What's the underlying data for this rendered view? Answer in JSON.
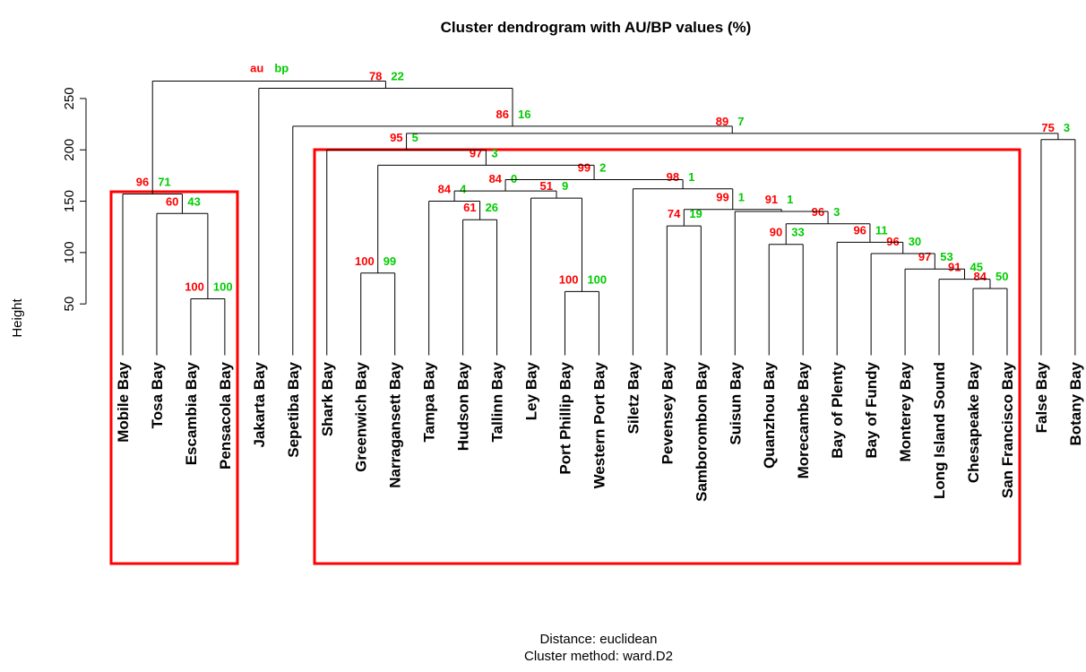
{
  "chart_data": {
    "type": "dendrogram",
    "title": "Cluster dendrogram with AU/BP values (%)",
    "y_label": "Height",
    "x_label": [
      "Distance:  euclidean",
      "Cluster method: ward.D2"
    ],
    "legend": [
      "au",
      "bp"
    ],
    "au_color": "#ff0000",
    "bp_color": "#00cc00",
    "line_color": "#000000",
    "rect_color": "#ff0000",
    "ylim": [
      0,
      270
    ],
    "yticks": [
      50,
      100,
      150,
      200,
      250
    ],
    "leaves": [
      "Mobile Bay",
      "Tosa Bay",
      "Escambia Bay",
      "Pensacola Bay",
      "Jakarta Bay",
      "Sepetiba Bay",
      "Shark Bay",
      "Greenwich Bay",
      "Narragansett Bay",
      "Tampa Bay",
      "Hudson Bay",
      "Tallinn Bay",
      "Ley Bay",
      "Port Phillip Bay",
      "Western Port Bay",
      "Siletz Bay",
      "Pevensey Bay",
      "Samborombon Bay",
      "Suisun Bay",
      "Quanzhou Bay",
      "Morecambe Bay",
      "Bay of Plenty",
      "Bay of Fundy",
      "Monterey Bay",
      "Long Island Sound",
      "Chesapeake Bay",
      "San Francisco Bay",
      "False Bay",
      "Botany Bay"
    ],
    "merges": [
      {
        "pair": [
          -3,
          -4
        ],
        "height": 55,
        "au": 100,
        "bp": 100
      },
      {
        "pair": [
          -14,
          -15
        ],
        "height": 62,
        "au": 100,
        "bp": 100
      },
      {
        "pair": [
          -26,
          -27
        ],
        "height": 65,
        "au": 84,
        "bp": 50
      },
      {
        "pair": [
          -25,
          3
        ],
        "height": 74,
        "au": 91,
        "bp": 45
      },
      {
        "pair": [
          -8,
          -9
        ],
        "height": 80,
        "au": 100,
        "bp": 99
      },
      {
        "pair": [
          -24,
          4
        ],
        "height": 84,
        "au": 97,
        "bp": 53
      },
      {
        "pair": [
          -23,
          6
        ],
        "height": 99,
        "au": 96,
        "bp": 30
      },
      {
        "pair": [
          -20,
          -21
        ],
        "height": 108,
        "au": 90,
        "bp": 33
      },
      {
        "pair": [
          -22,
          7
        ],
        "height": 110,
        "au": 96,
        "bp": 11
      },
      {
        "pair": [
          -17,
          -18
        ],
        "height": 126,
        "au": 74,
        "bp": 19
      },
      {
        "pair": [
          8,
          9
        ],
        "height": 128,
        "au": 96,
        "bp": 3
      },
      {
        "pair": [
          -11,
          -12
        ],
        "height": 132,
        "au": 61,
        "bp": 26
      },
      {
        "pair": [
          -2,
          1
        ],
        "height": 138,
        "au": 60,
        "bp": 43
      },
      {
        "pair": [
          -19,
          11
        ],
        "height": 140,
        "au": 91,
        "bp": 1
      },
      {
        "pair": [
          10,
          14
        ],
        "height": 142,
        "au": 99,
        "bp": 1
      },
      {
        "pair": [
          -10,
          12
        ],
        "height": 150,
        "au": 84,
        "bp": 4
      },
      {
        "pair": [
          -13,
          2
        ],
        "height": 153,
        "au": 51,
        "bp": 9
      },
      {
        "pair": [
          -1,
          13
        ],
        "height": 157,
        "au": 96,
        "bp": 71
      },
      {
        "pair": [
          -16,
          15
        ],
        "height": 162,
        "au": 98,
        "bp": 1
      },
      {
        "pair": [
          16,
          17
        ],
        "height": 160,
        "au": 84,
        "bp": 0
      },
      {
        "pair": [
          20,
          19
        ],
        "height": 171,
        "au": 99,
        "bp": 2
      },
      {
        "pair": [
          5,
          21
        ],
        "height": 185,
        "au": 97,
        "bp": 3
      },
      {
        "pair": [
          -7,
          22
        ],
        "height": 200,
        "au": 95,
        "bp": 5
      },
      {
        "pair": [
          -28,
          -29
        ],
        "height": 210,
        "au": 75,
        "bp": 3
      },
      {
        "pair": [
          23,
          24
        ],
        "height": 216,
        "au": 89,
        "bp": 7
      },
      {
        "pair": [
          -6,
          25
        ],
        "height": 223,
        "au": 86,
        "bp": 16
      },
      {
        "pair": [
          -5,
          26
        ],
        "height": 260,
        "au": 78,
        "bp": 22
      },
      {
        "pair": [
          18,
          27
        ],
        "height": 267
      }
    ]
  }
}
